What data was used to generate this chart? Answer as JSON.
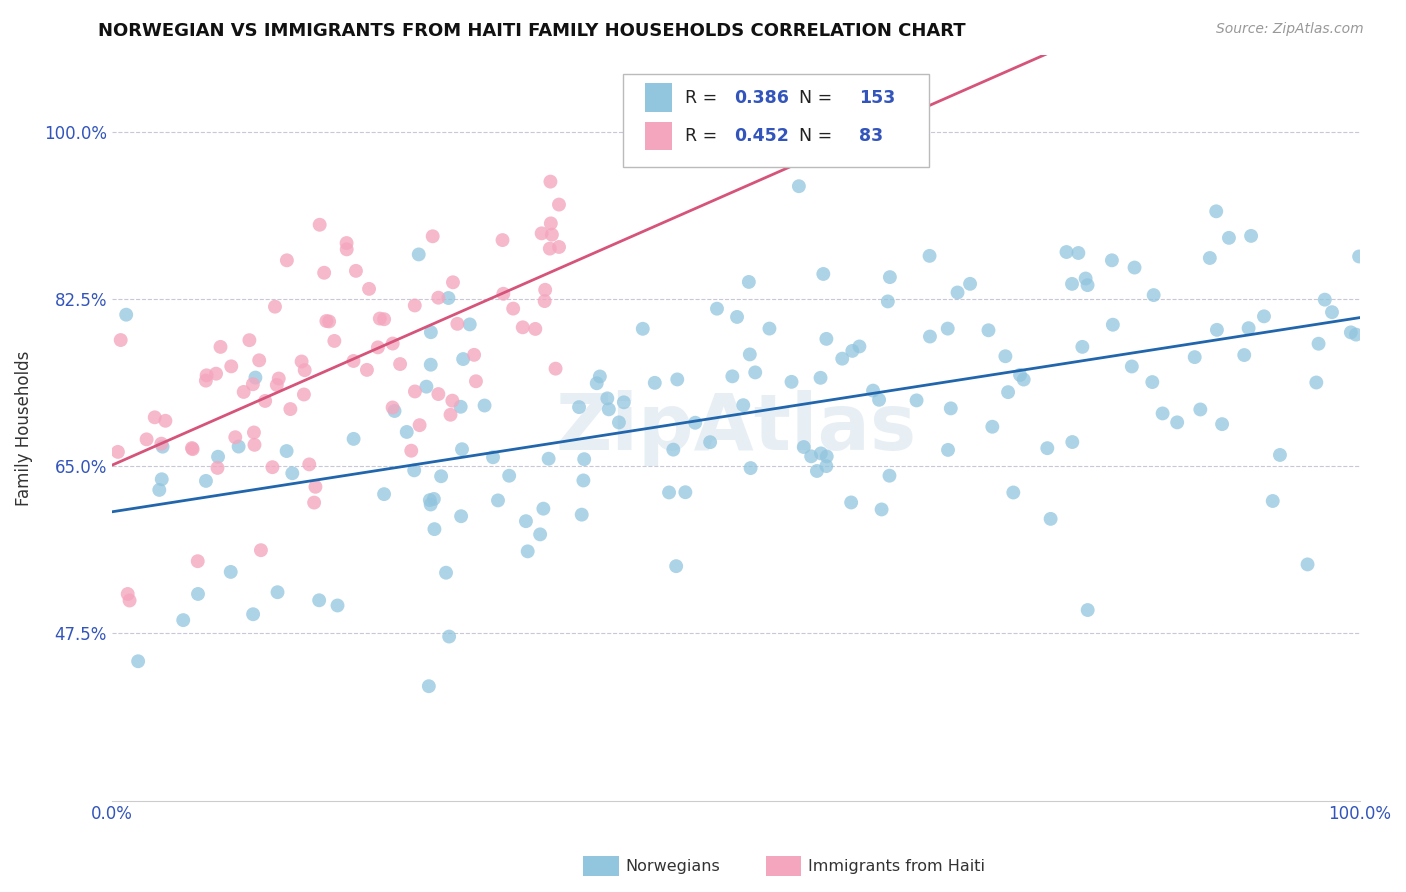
{
  "title": "NORWEGIAN VS IMMIGRANTS FROM HAITI FAMILY HOUSEHOLDS CORRELATION CHART",
  "source": "Source: ZipAtlas.com",
  "ylabel": "Family Households",
  "watermark": "ZipAtlas",
  "xmin": 0.0,
  "xmax": 1.0,
  "ymin": 0.3,
  "ymax": 1.08,
  "yticks": [
    0.475,
    0.65,
    0.825,
    1.0
  ],
  "ytick_labels": [
    "47.5%",
    "65.0%",
    "82.5%",
    "100.0%"
  ],
  "xticks": [
    0.0,
    1.0
  ],
  "xtick_labels": [
    "0.0%",
    "100.0%"
  ],
  "blue_color": "#92c5de",
  "pink_color": "#f4a6be",
  "blue_line_color": "#2166ac",
  "pink_line_color": "#d6537a",
  "blue_R": 0.386,
  "blue_N": 153,
  "pink_R": 0.452,
  "pink_N": 83,
  "legend1_label": "Norwegians",
  "legend2_label": "Immigrants from Haiti",
  "axis_label_color": "#3355bb",
  "grid_color": "#c8c8d8",
  "title_fontsize": 13,
  "tick_fontsize": 12
}
